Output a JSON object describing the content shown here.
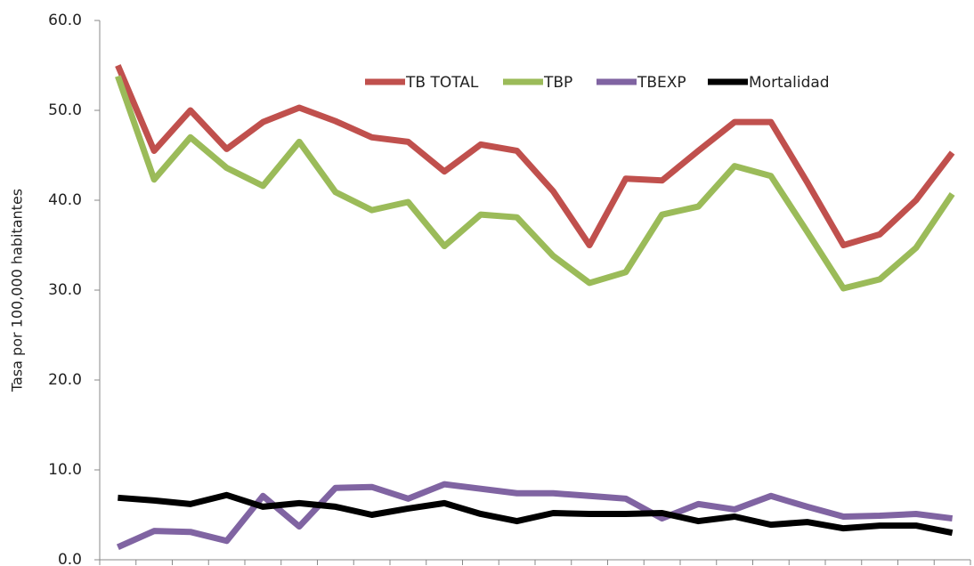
{
  "chart_data": {
    "type": "line",
    "y_label": "Tasa por 100,000 habitantes",
    "categories": [
      null,
      null,
      null,
      null,
      null,
      null,
      null,
      null,
      null,
      null,
      null,
      null,
      null,
      null,
      null,
      null,
      null,
      null,
      null,
      null,
      null,
      null,
      null,
      null
    ],
    "series": [
      {
        "name": "TB TOTAL",
        "color": "#c0504d",
        "values": [
          55,
          45.5,
          50,
          45.7,
          48.7,
          50.3,
          48.8,
          47,
          46.5,
          43.2,
          46.2,
          45.5,
          41,
          35,
          42.4,
          42.2,
          45.5,
          48.7,
          48.7,
          42,
          35,
          36.2,
          40,
          45.3
        ]
      },
      {
        "name": "TBP",
        "color": "#9bbb59",
        "values": [
          53.8,
          42.3,
          47,
          43.6,
          41.6,
          46.5,
          40.9,
          38.9,
          39.8,
          34.9,
          38.4,
          38.1,
          33.8,
          30.8,
          32,
          38.4,
          39.3,
          43.8,
          42.7,
          36.5,
          30.2,
          31.2,
          34.7,
          40.7
        ]
      },
      {
        "name": "TBEXP",
        "color": "#8064a2",
        "values": [
          1.4,
          3.2,
          3.1,
          2.1,
          7.1,
          3.7,
          8,
          8.1,
          6.8,
          8.4,
          7.9,
          7.4,
          7.4,
          7.1,
          6.8,
          4.6,
          6.2,
          5.6,
          7.1,
          5.9,
          4.8,
          4.9,
          5.1,
          4.6
        ]
      },
      {
        "name": "Mortalidad",
        "color": "#000000",
        "values": [
          6.9,
          6.6,
          6.2,
          7.2,
          5.9,
          6.3,
          5.9,
          5,
          5.7,
          6.3,
          5.1,
          4.3,
          5.2,
          5.1,
          5.1,
          5.2,
          4.3,
          4.8,
          3.9,
          4.2,
          3.5,
          3.8,
          3.8,
          3.0
        ]
      }
    ],
    "ylim": [
      0,
      60
    ],
    "yticks": [
      {
        "value": 0,
        "label": "0.0"
      },
      {
        "value": 10,
        "label": "10.0"
      },
      {
        "value": 20,
        "label": "20.0"
      },
      {
        "value": 30,
        "label": "30.0"
      },
      {
        "value": 40,
        "label": "40.0"
      },
      {
        "value": 50,
        "label": "50.0"
      },
      {
        "value": 60,
        "label": "60.0"
      }
    ],
    "legend": "top",
    "grid": false
  }
}
